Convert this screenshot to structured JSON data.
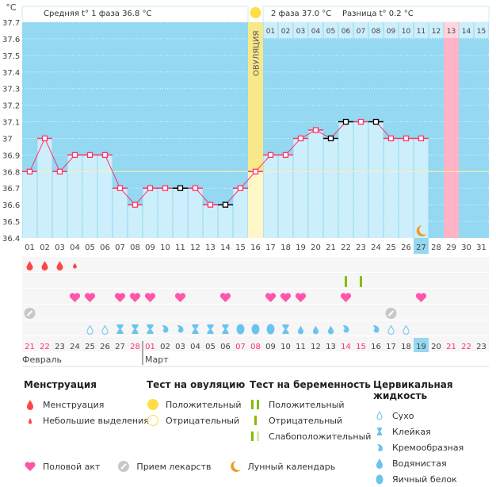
{
  "header": {
    "unit": "°C",
    "phase1": "Средняя t° 1 фаза 36.8 °C",
    "phase2": "2 фаза 37.0 °C",
    "diff": "Разница t° 0.2 °C",
    "ovulation_label": "ОВУЛЯЦИЯ"
  },
  "colors": {
    "bg": "#94d8f2",
    "bar": "#cdeefb",
    "line": "#ff3366",
    "ovulation": "#f8e88a",
    "pink": "#ffb3c6",
    "today": "#94d8f2",
    "weekend": "#ff3366"
  },
  "chart_data": {
    "type": "line",
    "ylim": [
      36.4,
      37.7
    ],
    "yticks": [
      "36.4",
      "36.5",
      "36.6",
      "36.7",
      "36.8",
      "36.9",
      "37",
      "37.1",
      "37.2",
      "37.3",
      "37.4",
      "37.5",
      "37.6",
      "37.7"
    ],
    "cycle_days": [
      "01",
      "02",
      "03",
      "04",
      "05",
      "06",
      "07",
      "08",
      "09",
      "10",
      "11",
      "12",
      "13",
      "14",
      "15",
      "16",
      "17",
      "18",
      "19",
      "20",
      "21",
      "22",
      "23",
      "24",
      "25",
      "26",
      "27",
      "28",
      "29",
      "30",
      "31"
    ],
    "temperatures": [
      36.8,
      37.0,
      36.8,
      36.9,
      36.9,
      36.9,
      36.7,
      36.6,
      36.7,
      36.7,
      36.7,
      36.7,
      36.6,
      36.6,
      36.7,
      36.8,
      36.9,
      36.9,
      37.0,
      37.05,
      37.0,
      37.1,
      37.1,
      37.1,
      37.0,
      37.0,
      37.0
    ],
    "excluded_days": [
      11,
      14,
      21,
      22,
      24
    ],
    "coverline": 36.8,
    "ovulation_day": 16,
    "current_day": 27,
    "expected_period_day": 29,
    "phase2_days": [
      "01",
      "02",
      "03",
      "04",
      "05",
      "06",
      "07",
      "08",
      "09",
      "10",
      "11",
      "12",
      "13",
      "14",
      "15"
    ],
    "phase2_highlight": "13",
    "dates": [
      "21",
      "22",
      "23",
      "24",
      "25",
      "26",
      "27",
      "28",
      "01",
      "02",
      "03",
      "04",
      "05",
      "06",
      "07",
      "08",
      "09",
      "10",
      "11",
      "12",
      "13",
      "14",
      "15",
      "16",
      "17",
      "18",
      "19",
      "20",
      "21",
      "22",
      "23"
    ],
    "weekend_dates_idx": [
      0,
      1,
      7,
      8,
      14,
      15,
      21,
      22,
      28,
      29
    ],
    "months": [
      "Февраль",
      "Март"
    ],
    "menstruation": {
      "1": "full",
      "2": "full",
      "3": "full",
      "4": "light"
    },
    "pregnancy_tests": {
      "22": "negative",
      "23": "negative"
    },
    "intercourse": [
      4,
      5,
      7,
      8,
      9,
      11,
      14,
      17,
      18,
      19,
      22,
      27
    ],
    "medication": [
      1,
      25
    ],
    "moon": [
      27
    ],
    "cervical_fluid": {
      "5": "dry",
      "6": "dry",
      "7": "sticky",
      "8": "sticky",
      "9": "sticky",
      "10": "creamy",
      "11": "creamy",
      "12": "sticky",
      "13": "sticky",
      "14": "sticky",
      "15": "egg",
      "16": "egg",
      "17": "egg",
      "18": "sticky",
      "19": "watery",
      "20": "watery",
      "21": "watery",
      "22": "creamy",
      "24": "creamy",
      "25": "dry",
      "26": "dry"
    }
  },
  "legend": {
    "menstruation": {
      "title": "Менструация",
      "items": [
        "Менструация",
        "Небольшие выделения"
      ]
    },
    "ovulation_test": {
      "title": "Тест на овуляцию",
      "items": [
        "Положительный",
        "Отрицательный"
      ]
    },
    "pregnancy_test": {
      "title": "Тест на беременность",
      "items": [
        "Положительный",
        "Отрицательный",
        "Слабоположительный"
      ]
    },
    "cervical": {
      "title": "Цервикальная жидкость",
      "items": [
        "Сухо",
        "Клейкая",
        "Кремообразная",
        "Водянистая",
        "Яичный белок"
      ]
    },
    "other": [
      "Половой акт",
      "Прием лекарств",
      "Лунный календарь"
    ]
  }
}
